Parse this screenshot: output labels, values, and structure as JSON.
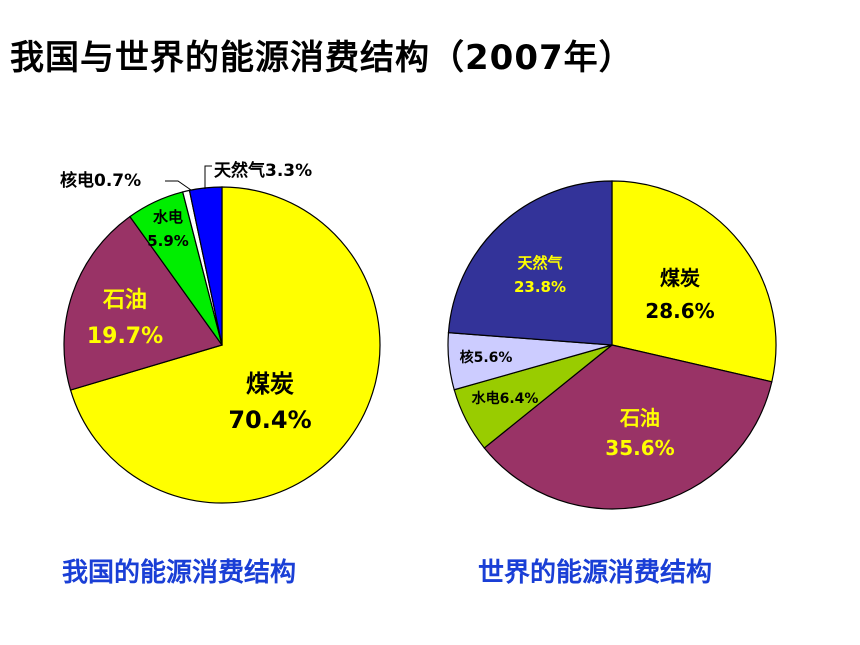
{
  "title": "我国与世界的能源消费结构（2007年）",
  "chart_data": [
    {
      "type": "pie",
      "caption": "我国的能源消费结构",
      "slices": [
        {
          "name": "煤炭",
          "value": 70.4,
          "label": "70.4%",
          "color": "#ffff00"
        },
        {
          "name": "石油",
          "value": 19.7,
          "label": "19.7%",
          "color": "#993366"
        },
        {
          "name": "水电",
          "value": 5.9,
          "label": "5.9%",
          "color": "#00ee00"
        },
        {
          "name": "核电",
          "value": 0.7,
          "label": "0.7%",
          "color": "#ffffff"
        },
        {
          "name": "天然气",
          "value": 3.3,
          "label": "3.3%",
          "color": "#0000ff"
        }
      ]
    },
    {
      "type": "pie",
      "caption": "世界的能源消费结构",
      "slices": [
        {
          "name": "煤炭",
          "value": 28.6,
          "label": "28.6%",
          "color": "#ffff00"
        },
        {
          "name": "石油",
          "value": 35.6,
          "label": "35.6%",
          "color": "#993366"
        },
        {
          "name": "水电",
          "value": 6.4,
          "label": "6.4%",
          "color": "#99cc00"
        },
        {
          "name": "核",
          "value": 5.6,
          "label": "5.6%",
          "color": "#ccccff"
        },
        {
          "name": "天然气",
          "value": 23.8,
          "label": "23.8%",
          "color": "#333399"
        }
      ]
    }
  ]
}
